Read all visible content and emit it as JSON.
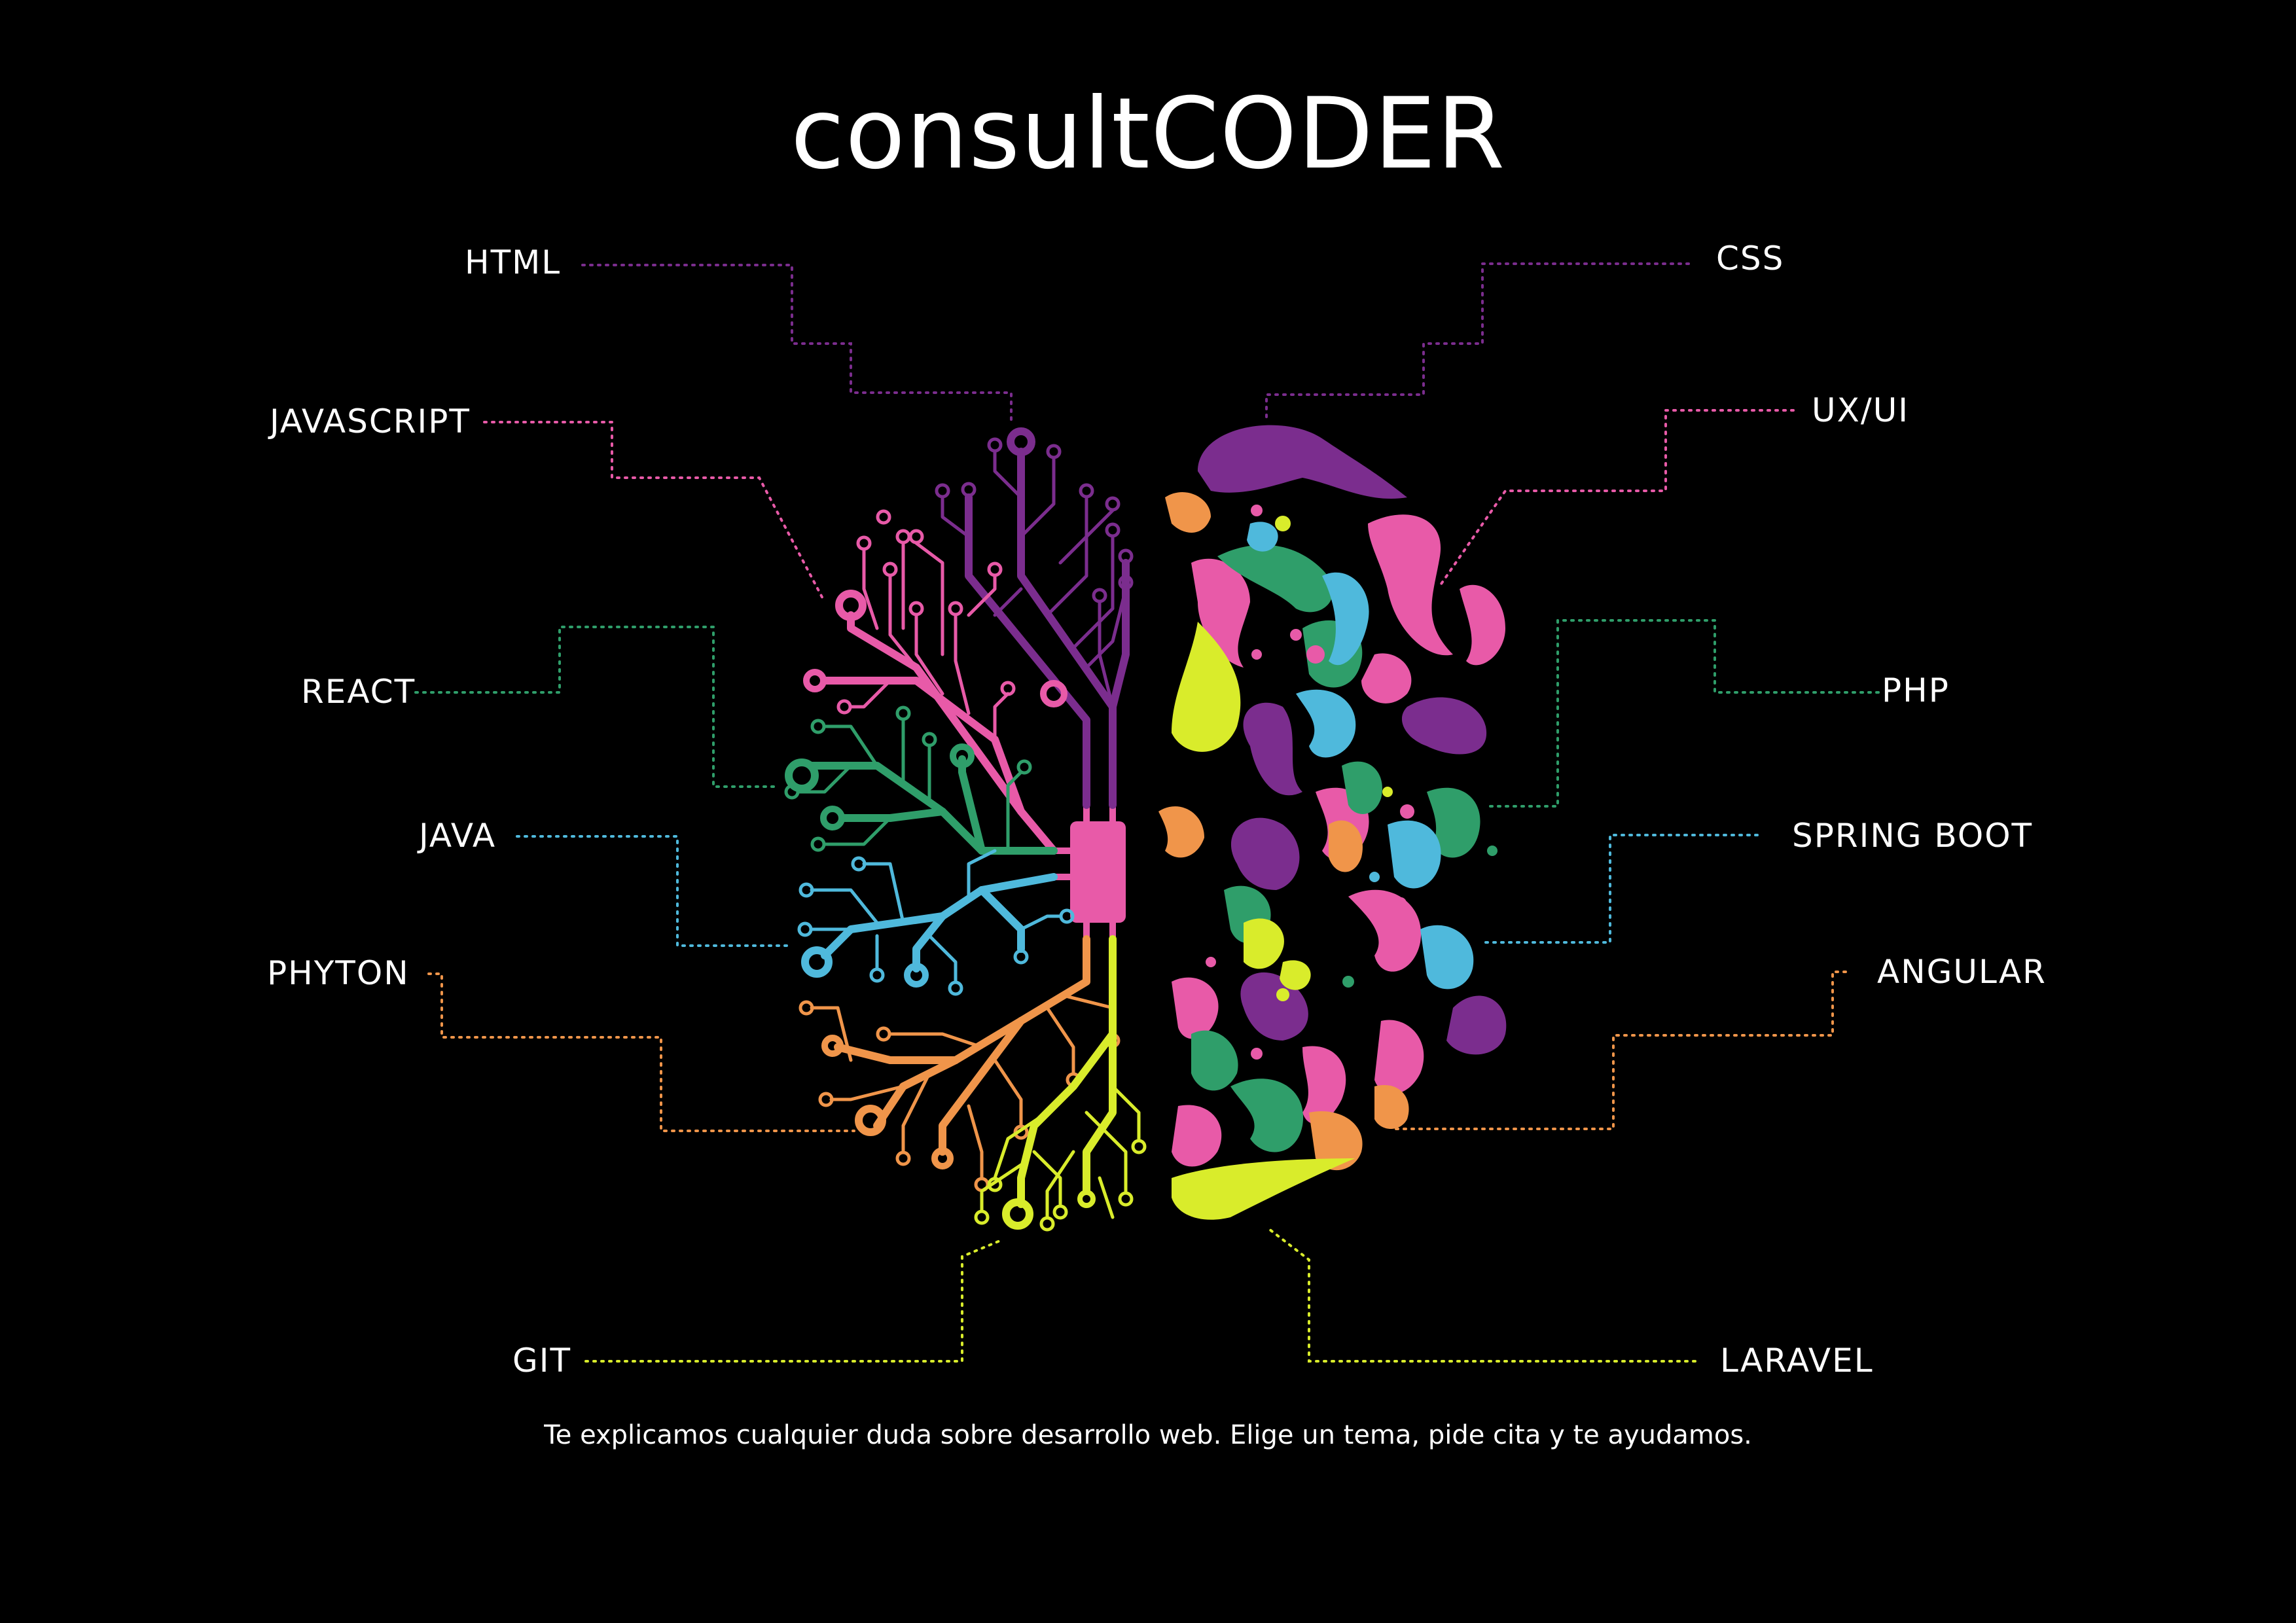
{
  "header": {
    "title_lower": "consult",
    "title_upper": "CODER"
  },
  "topics": {
    "html": "HTML",
    "javascript": "JAVASCRIPT",
    "react": "REACT",
    "java": "JAVA",
    "phyton": "PHYTON",
    "git": "GIT",
    "css": "CSS",
    "uxui": "UX/UI",
    "php": "PHP",
    "spring_boot": "SPRING BOOT",
    "angular": "ANGULAR",
    "laravel": "LARAVEL"
  },
  "footer": {
    "text": "Te explicamos cualquier duda sobre desarrollo web. Elige un tema, pide cita y te ayudamos."
  },
  "colors": {
    "background": "#000000",
    "purple": "#7b2d8e",
    "magenta": "#e85aa8",
    "green": "#2f9e6a",
    "blue": "#4fb9dc",
    "orange": "#f0954a",
    "yellow": "#d9ec2b"
  }
}
